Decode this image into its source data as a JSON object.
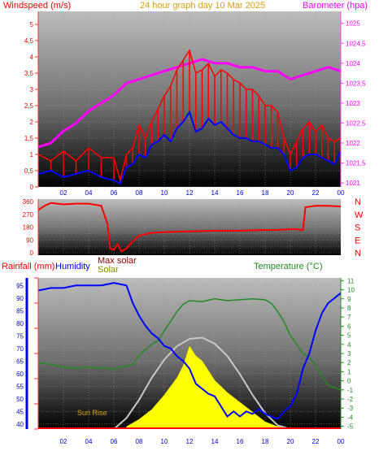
{
  "header": {
    "left_label": "Windspeed (m/s)",
    "center_label": "24 hour graph day   10 Mar 2025",
    "right_label": "Barometer (hpa)"
  },
  "chart_data": [
    {
      "type": "line",
      "panel": "wind-barometer",
      "x_ticks": [
        "02",
        "04",
        "06",
        "08",
        "10",
        "12",
        "14",
        "16",
        "18",
        "20",
        "22",
        "00"
      ],
      "ylabel_left": "Windspeed (m/s)",
      "ylabel_right": "Barometer (hpa)",
      "ylim_left": [
        0,
        5
      ],
      "ylim_right": [
        1021,
        1025.3
      ],
      "left_ticks": [
        "0",
        "0,5",
        "1",
        "1,5",
        "2",
        "2,5",
        "3",
        "3,5",
        "4",
        "4,5",
        "5"
      ],
      "right_ticks": [
        "1021",
        "1021,5",
        "1022",
        "1022,5",
        "1023",
        "1023,5",
        "1024",
        "1024,5",
        "1025"
      ],
      "series": [
        {
          "name": "Windspeed (m/s)",
          "role": "gust",
          "color": "#ff0000",
          "x": [
            0,
            1,
            2,
            3,
            4,
            5,
            6,
            6.5,
            7,
            7.5,
            8,
            8.5,
            9,
            9.5,
            10,
            10.5,
            11,
            11.5,
            12,
            12.5,
            13,
            13.5,
            14,
            14.5,
            15,
            15.5,
            16,
            16.5,
            17,
            17.5,
            18,
            18.5,
            19,
            19.5,
            20,
            20.5,
            21,
            21.5,
            22,
            22.5,
            23,
            23.5,
            24
          ],
          "y": [
            1.0,
            0.8,
            1.1,
            0.8,
            1.2,
            0.9,
            0.9,
            0.2,
            1.0,
            1.2,
            1.9,
            1.5,
            2.0,
            2.4,
            2.8,
            3.1,
            3.6,
            3.9,
            4.2,
            3.5,
            3.6,
            3.8,
            3.4,
            3.6,
            3.5,
            3.3,
            3.2,
            3.0,
            3.0,
            2.8,
            2.5,
            2.5,
            2.3,
            1.5,
            1.0,
            1.4,
            1.8,
            2.0,
            1.7,
            1.9,
            1.5,
            1.4,
            1.5
          ]
        },
        {
          "name": "Windspeed (m/s)",
          "role": "average",
          "color": "#0000ff",
          "x": [
            0,
            1,
            2,
            3,
            4,
            5,
            6,
            6.5,
            7,
            7.5,
            8,
            8.5,
            9,
            9.5,
            10,
            10.5,
            11,
            11.5,
            12,
            12.5,
            13,
            13.5,
            14,
            14.5,
            15,
            15.5,
            16,
            16.5,
            17,
            17.5,
            18,
            18.5,
            19,
            19.5,
            20,
            20.5,
            21,
            21.5,
            22,
            22.5,
            23,
            23.5,
            24
          ],
          "y": [
            0.4,
            0.5,
            0.3,
            0.4,
            0.5,
            0.3,
            0.2,
            0.1,
            0.6,
            0.7,
            1.0,
            0.9,
            1.3,
            1.4,
            1.6,
            1.4,
            1.8,
            2.0,
            2.3,
            1.7,
            1.8,
            2.1,
            1.9,
            2.0,
            1.8,
            1.6,
            1.5,
            1.5,
            1.4,
            1.4,
            1.3,
            1.2,
            1.2,
            1.0,
            0.5,
            0.6,
            0.9,
            1.0,
            1.0,
            0.9,
            0.8,
            0.7,
            1.1
          ]
        },
        {
          "name": "Barometer (hpa)",
          "color": "#ff00ff",
          "x": [
            0,
            1,
            2,
            3,
            4,
            5,
            6,
            7,
            8,
            9,
            10,
            11,
            12,
            13,
            14,
            15,
            16,
            17,
            18,
            19,
            20,
            21,
            22,
            23,
            24
          ],
          "y": [
            1021.9,
            1022.0,
            1022.3,
            1022.5,
            1022.8,
            1023.0,
            1023.2,
            1023.5,
            1023.6,
            1023.7,
            1023.8,
            1023.9,
            1024.0,
            1024.1,
            1024.0,
            1024.0,
            1023.9,
            1023.9,
            1023.8,
            1023.8,
            1023.6,
            1023.7,
            1023.8,
            1023.9,
            1023.8
          ]
        }
      ]
    },
    {
      "type": "line",
      "panel": "wind-direction",
      "ylim": [
        0,
        360
      ],
      "left_ticks": [
        "0",
        "90",
        "180",
        "270",
        "360"
      ],
      "compass_labels": [
        "N",
        "W",
        "S",
        "E",
        "N"
      ],
      "series": [
        {
          "name": "Wind direction",
          "color": "#ff0000",
          "x": [
            0,
            0.5,
            1,
            2,
            3,
            4,
            5,
            5.5,
            5.7,
            6,
            6.3,
            6.6,
            7,
            7.5,
            8,
            9,
            10,
            12,
            14,
            16,
            18,
            19,
            20,
            20.5,
            21,
            21.2,
            22,
            23,
            24
          ],
          "y": [
            300,
            330,
            350,
            340,
            345,
            345,
            330,
            200,
            30,
            20,
            60,
            10,
            30,
            80,
            120,
            140,
            145,
            150,
            155,
            155,
            160,
            160,
            165,
            165,
            160,
            320,
            330,
            330,
            325
          ]
        }
      ]
    },
    {
      "type": "line",
      "panel": "humidity-temperature-solar",
      "ylabel_left_1": "Rainfall (mm)",
      "ylabel_left_2": "Humidity",
      "ylabel_solar_max": "Max solar",
      "ylabel_solar": "Solar",
      "ylabel_right": "Temperature (°C)",
      "ylim_humidity": [
        38,
        98
      ],
      "ylim_temperature": [
        -5,
        11
      ],
      "humidity_ticks": [
        "40",
        "45",
        "50",
        "55",
        "60",
        "65",
        "70",
        "75",
        "80",
        "85",
        "90",
        "95"
      ],
      "temperature_ticks": [
        "-5",
        "-4",
        "-3",
        "-2",
        "-1",
        "0",
        "1",
        "2",
        "3",
        "4",
        "5",
        "6",
        "7",
        "8",
        "9",
        "10",
        "11"
      ],
      "annotation": "Sun Rise",
      "series": [
        {
          "name": "Humidity",
          "color": "#0000ff",
          "x": [
            0,
            1,
            2,
            3,
            4,
            5,
            6,
            7,
            7.5,
            8,
            8.5,
            9,
            9.5,
            10,
            10.5,
            11,
            11.5,
            12,
            12.5,
            13,
            13.5,
            14,
            14.5,
            15,
            15.5,
            16,
            16.5,
            17,
            17.5,
            18,
            18.5,
            19,
            19.5,
            20,
            20.5,
            21,
            21.5,
            22,
            22.5,
            23,
            23.5,
            24
          ],
          "y": [
            93,
            94,
            94,
            95,
            95,
            95,
            96,
            95,
            88,
            83,
            79,
            76,
            74,
            71,
            70,
            67,
            65,
            62,
            56,
            54,
            52,
            51,
            47,
            43,
            45,
            43,
            45,
            44,
            46,
            44,
            43,
            42,
            45,
            47,
            52,
            62,
            68,
            77,
            84,
            88,
            90,
            92
          ]
        },
        {
          "name": "Temperature (°C)",
          "color": "#228b22",
          "x": [
            0,
            1,
            2,
            3,
            4,
            5,
            6,
            7,
            7.5,
            8,
            8.5,
            9,
            9.5,
            10,
            10.5,
            11,
            11.5,
            12,
            13,
            14,
            15,
            16,
            17,
            18,
            18.5,
            19,
            19.5,
            20,
            20.5,
            21,
            21.5,
            22,
            22.5,
            23,
            24
          ],
          "y": [
            2.0,
            1.8,
            1.5,
            1.4,
            1.5,
            1.4,
            1.3,
            1.6,
            1.8,
            2.8,
            3.4,
            4.0,
            4.4,
            5.5,
            6.5,
            7.6,
            8.4,
            8.8,
            8.7,
            9.0,
            8.8,
            8.9,
            9.0,
            8.9,
            8.5,
            7.6,
            6.5,
            5.0,
            4.0,
            3.0,
            2.5,
            1.8,
            0.5,
            -0.5,
            -1.0
          ]
        },
        {
          "name": "Max solar",
          "color": "#c8c8c8",
          "x": [
            6,
            7,
            8,
            9,
            10,
            11,
            12,
            13,
            14,
            15,
            16,
            17,
            18,
            19,
            20
          ],
          "y": [
            0,
            45,
            120,
            210,
            285,
            340,
            370,
            375,
            350,
            300,
            225,
            140,
            65,
            15,
            0
          ]
        },
        {
          "name": "Solar",
          "color": "#ffff00",
          "x": [
            7,
            8,
            9,
            10,
            11,
            11.5,
            12,
            12.5,
            13,
            13.5,
            14,
            15,
            16,
            17,
            18,
            19,
            20
          ],
          "y": [
            10,
            40,
            80,
            140,
            210,
            260,
            340,
            300,
            280,
            240,
            200,
            150,
            110,
            70,
            30,
            10,
            0
          ]
        }
      ]
    }
  ]
}
